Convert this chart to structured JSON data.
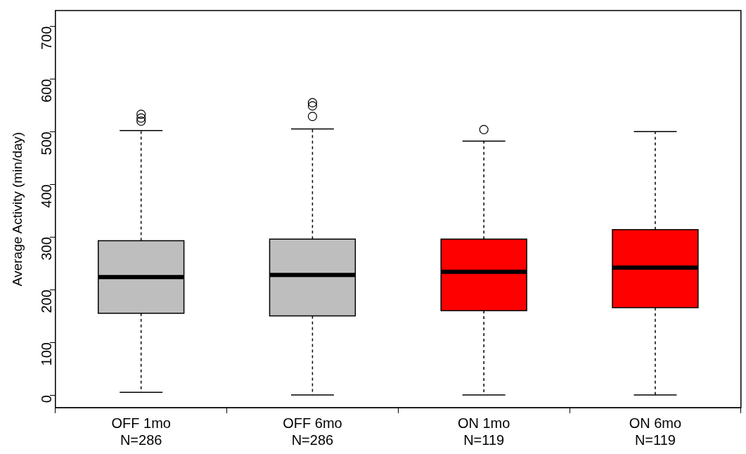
{
  "chart_data": {
    "type": "box",
    "ylabel": "Average Activity (min/day)",
    "categories": [
      "OFF 1mo\nN=286",
      "OFF 6mo\nN=286",
      "ON 1mo\nN=119",
      "ON 6mo\nN=119"
    ],
    "colors": [
      "#bebebe",
      "#bebebe",
      "#ff0000",
      "#ff0000"
    ],
    "boxes": [
      {
        "low": 5,
        "q1": 155,
        "median": 224,
        "q3": 293,
        "high": 502,
        "outliers": [
          520,
          526,
          533
        ]
      },
      {
        "low": 0,
        "q1": 150,
        "median": 228,
        "q3": 296,
        "high": 505,
        "outliers": [
          529,
          549,
          555
        ]
      },
      {
        "low": 0,
        "q1": 160,
        "median": 234,
        "q3": 296,
        "high": 482,
        "outliers": [
          504
        ]
      },
      {
        "low": 0,
        "q1": 166,
        "median": 242,
        "q3": 314,
        "high": 500
      }
    ],
    "ylim": [
      -24,
      730
    ],
    "yticks": [
      0,
      100,
      200,
      300,
      400,
      500,
      600,
      700
    ],
    "grid": false,
    "legend": false
  }
}
